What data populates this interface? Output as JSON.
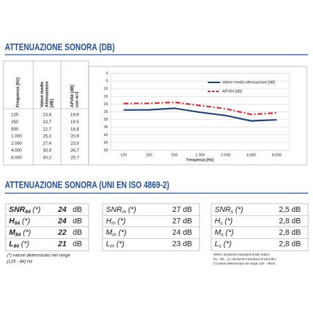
{
  "title": "ATTENUAZIONE SONORA (DB)",
  "table": {
    "headers": [
      [
        "Frequenza [Hz]"
      ],
      [
        "Valore medio",
        "Attenuazione",
        "[dB]"
      ],
      [
        "APV84 [dB]",
        "con α=1"
      ]
    ],
    "rows": [
      [
        "125",
        "23,8",
        "19,6"
      ],
      [
        "250",
        "23,7",
        "19,5"
      ],
      [
        "500",
        "22,7",
        "18,8"
      ],
      [
        "1.000",
        "25,3",
        "20,9"
      ],
      [
        "2.000",
        "27,4",
        "23,0"
      ],
      [
        "4.000",
        "30,9",
        "26,7"
      ],
      [
        "8.000",
        "30,2",
        "25,7"
      ]
    ]
  },
  "chart_data": {
    "type": "line",
    "categories": [
      "125",
      "250",
      "500",
      "1.000",
      "2.000",
      "4.000",
      "8.000"
    ],
    "series": [
      {
        "name": "Valore medio attenuazione [dB]",
        "color": "#1f3f7a",
        "values": [
          23.8,
          23.7,
          22.7,
          25.3,
          27.4,
          30.9,
          30.2
        ]
      },
      {
        "name": "APV84 [dB]",
        "color": "#e0202a",
        "dashed": true,
        "values": [
          19.6,
          19.5,
          18.8,
          20.9,
          23.0,
          26.7,
          25.7
        ]
      }
    ],
    "ylim": [
      0,
      50
    ],
    "yticks": [
      0,
      5,
      10,
      15,
      20,
      25,
      30,
      35,
      40,
      45,
      50
    ],
    "y_inverted": true,
    "grid": true,
    "x_label": "Frequenza [Hz]",
    "legend": "upper right"
  },
  "subtitle": "ATTENUAZIONE SONORA (UNI EN ISO 4869-2)",
  "boxes": [
    {
      "bold": true,
      "rows": [
        {
          "label": "SNR",
          "sub": "84",
          "mark": "(*)",
          "value": "24",
          "unit": "dB"
        },
        {
          "label": "H",
          "sub": "84",
          "mark": "(*)",
          "value": "24",
          "unit": "dB"
        },
        {
          "label": "M",
          "sub": "84",
          "mark": "(*)",
          "value": "22",
          "unit": "dB"
        },
        {
          "label": "L",
          "sub": "84",
          "mark": "(*)",
          "value": "21",
          "unit": "dB"
        }
      ]
    },
    {
      "bold": false,
      "rows": [
        {
          "label": "SNR",
          "sub": "m",
          "mark": "(*)",
          "value": "27",
          "unit": "dB"
        },
        {
          "label": "H",
          "sub": "m",
          "mark": "(*)",
          "value": "27",
          "unit": "dB"
        },
        {
          "label": "M",
          "sub": "m",
          "mark": "(*)",
          "value": "24",
          "unit": "dB"
        },
        {
          "label": "L",
          "sub": "m",
          "mark": "(*)",
          "value": "23",
          "unit": "dB"
        }
      ]
    },
    {
      "bold": false,
      "rows": [
        {
          "label": "SNR",
          "sub": "s",
          "mark": "(*)",
          "value": "2,5",
          "unit": "dB"
        },
        {
          "label": "H",
          "sub": "s",
          "mark": "(*)",
          "value": "2,8",
          "unit": "dB"
        },
        {
          "label": "M",
          "sub": "s",
          "mark": "(*)",
          "value": "2,8",
          "unit": "dB"
        },
        {
          "label": "L",
          "sub": "s",
          "mark": "(*)",
          "value": "2,8",
          "unit": "dB"
        }
      ]
    }
  ],
  "note": [
    "(*) valore determinato nel range",
    "[125 - 8k] Hz"
  ],
  "legend_notes": [
    "SNRs: deviazioni standard di tale indice",
    "Hs - Ms - Ls: deviazioni standard di tali indici",
    "(*) valore determinato nel range 125 – 8kHz"
  ]
}
